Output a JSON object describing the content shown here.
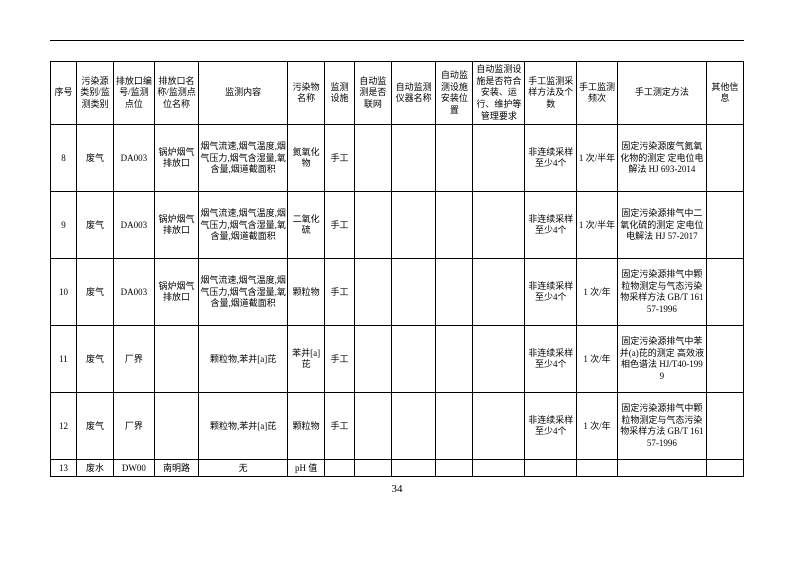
{
  "page_number": "34",
  "table": {
    "headers": [
      "序号",
      "污染源类别/监测类别",
      "排放口编号/监测点位",
      "排放口名称/监测点位名称",
      "监测内容",
      "污染物名称",
      "监测设施",
      "自动监测是否联网",
      "自动监测仪器名称",
      "自动监测设施安装位置",
      "自动监测设施是否符合安装、运行、维护等管理要求",
      "手工监测采样方法及个数",
      "手工监测频次",
      "手工测定方法",
      "其他信息"
    ],
    "rows": [
      {
        "c0": "8",
        "c1": "废气",
        "c2": "DA003",
        "c3": "锅炉烟气排放口",
        "c4": "烟气流速,烟气温度,烟气压力,烟气含湿量,氧含量,烟道截面积",
        "c5": "氮氧化物",
        "c6": "手工",
        "c7": "",
        "c8": "",
        "c9": "",
        "c10": "",
        "c11": "非连续采样 至少4个",
        "c12": "1 次/半年",
        "c13": "固定污染源废气氮氧化物的测定 定电位电解法 HJ 693-2014",
        "c14": ""
      },
      {
        "c0": "9",
        "c1": "废气",
        "c2": "DA003",
        "c3": "锅炉烟气排放口",
        "c4": "烟气流速,烟气温度,烟气压力,烟气含湿量,氧含量,烟道截面积",
        "c5": "二氧化硫",
        "c6": "手工",
        "c7": "",
        "c8": "",
        "c9": "",
        "c10": "",
        "c11": "非连续采样 至少4个",
        "c12": "1 次/半年",
        "c13": "固定污染源排气中二氧化硫的测定 定电位电解法 HJ 57-2017",
        "c14": ""
      },
      {
        "c0": "10",
        "c1": "废气",
        "c2": "DA003",
        "c3": "锅炉烟气排放口",
        "c4": "烟气流速,烟气温度,烟气压力,烟气含湿量,氧含量,烟道截面积",
        "c5": "颗粒物",
        "c6": "手工",
        "c7": "",
        "c8": "",
        "c9": "",
        "c10": "",
        "c11": "非连续采样 至少4个",
        "c12": "1 次/年",
        "c13": "固定污染源排气中颗粒物测定与气态污染物采样方法 GB/T 16157-1996",
        "c14": ""
      },
      {
        "c0": "11",
        "c1": "废气",
        "c2": "厂界",
        "c3": "",
        "c4": "颗粒物,苯并[a]芘",
        "c5": "苯并[a]芘",
        "c6": "手工",
        "c7": "",
        "c8": "",
        "c9": "",
        "c10": "",
        "c11": "非连续采样 至少4个",
        "c12": "1 次/年",
        "c13": "固定污染源排气中苯并(a)芘的测定 高效液相色谱法 HJ/T40-1999",
        "c14": ""
      },
      {
        "c0": "12",
        "c1": "废气",
        "c2": "厂界",
        "c3": "",
        "c4": "颗粒物,苯并[a]芘",
        "c5": "颗粒物",
        "c6": "手工",
        "c7": "",
        "c8": "",
        "c9": "",
        "c10": "",
        "c11": "非连续采样 至少4个",
        "c12": "1 次/年",
        "c13": "固定污染源排气中颗粒物测定与气态污染物采样方法 GB/T 16157-1996",
        "c14": ""
      },
      {
        "c0": "13",
        "c1": "废水",
        "c2": "DW00",
        "c3": "南明路",
        "c4": "无",
        "c5": "pH 值",
        "c6": "",
        "c7": "",
        "c8": "",
        "c9": "",
        "c10": "",
        "c11": "",
        "c12": "",
        "c13": "",
        "c14": ""
      }
    ]
  }
}
